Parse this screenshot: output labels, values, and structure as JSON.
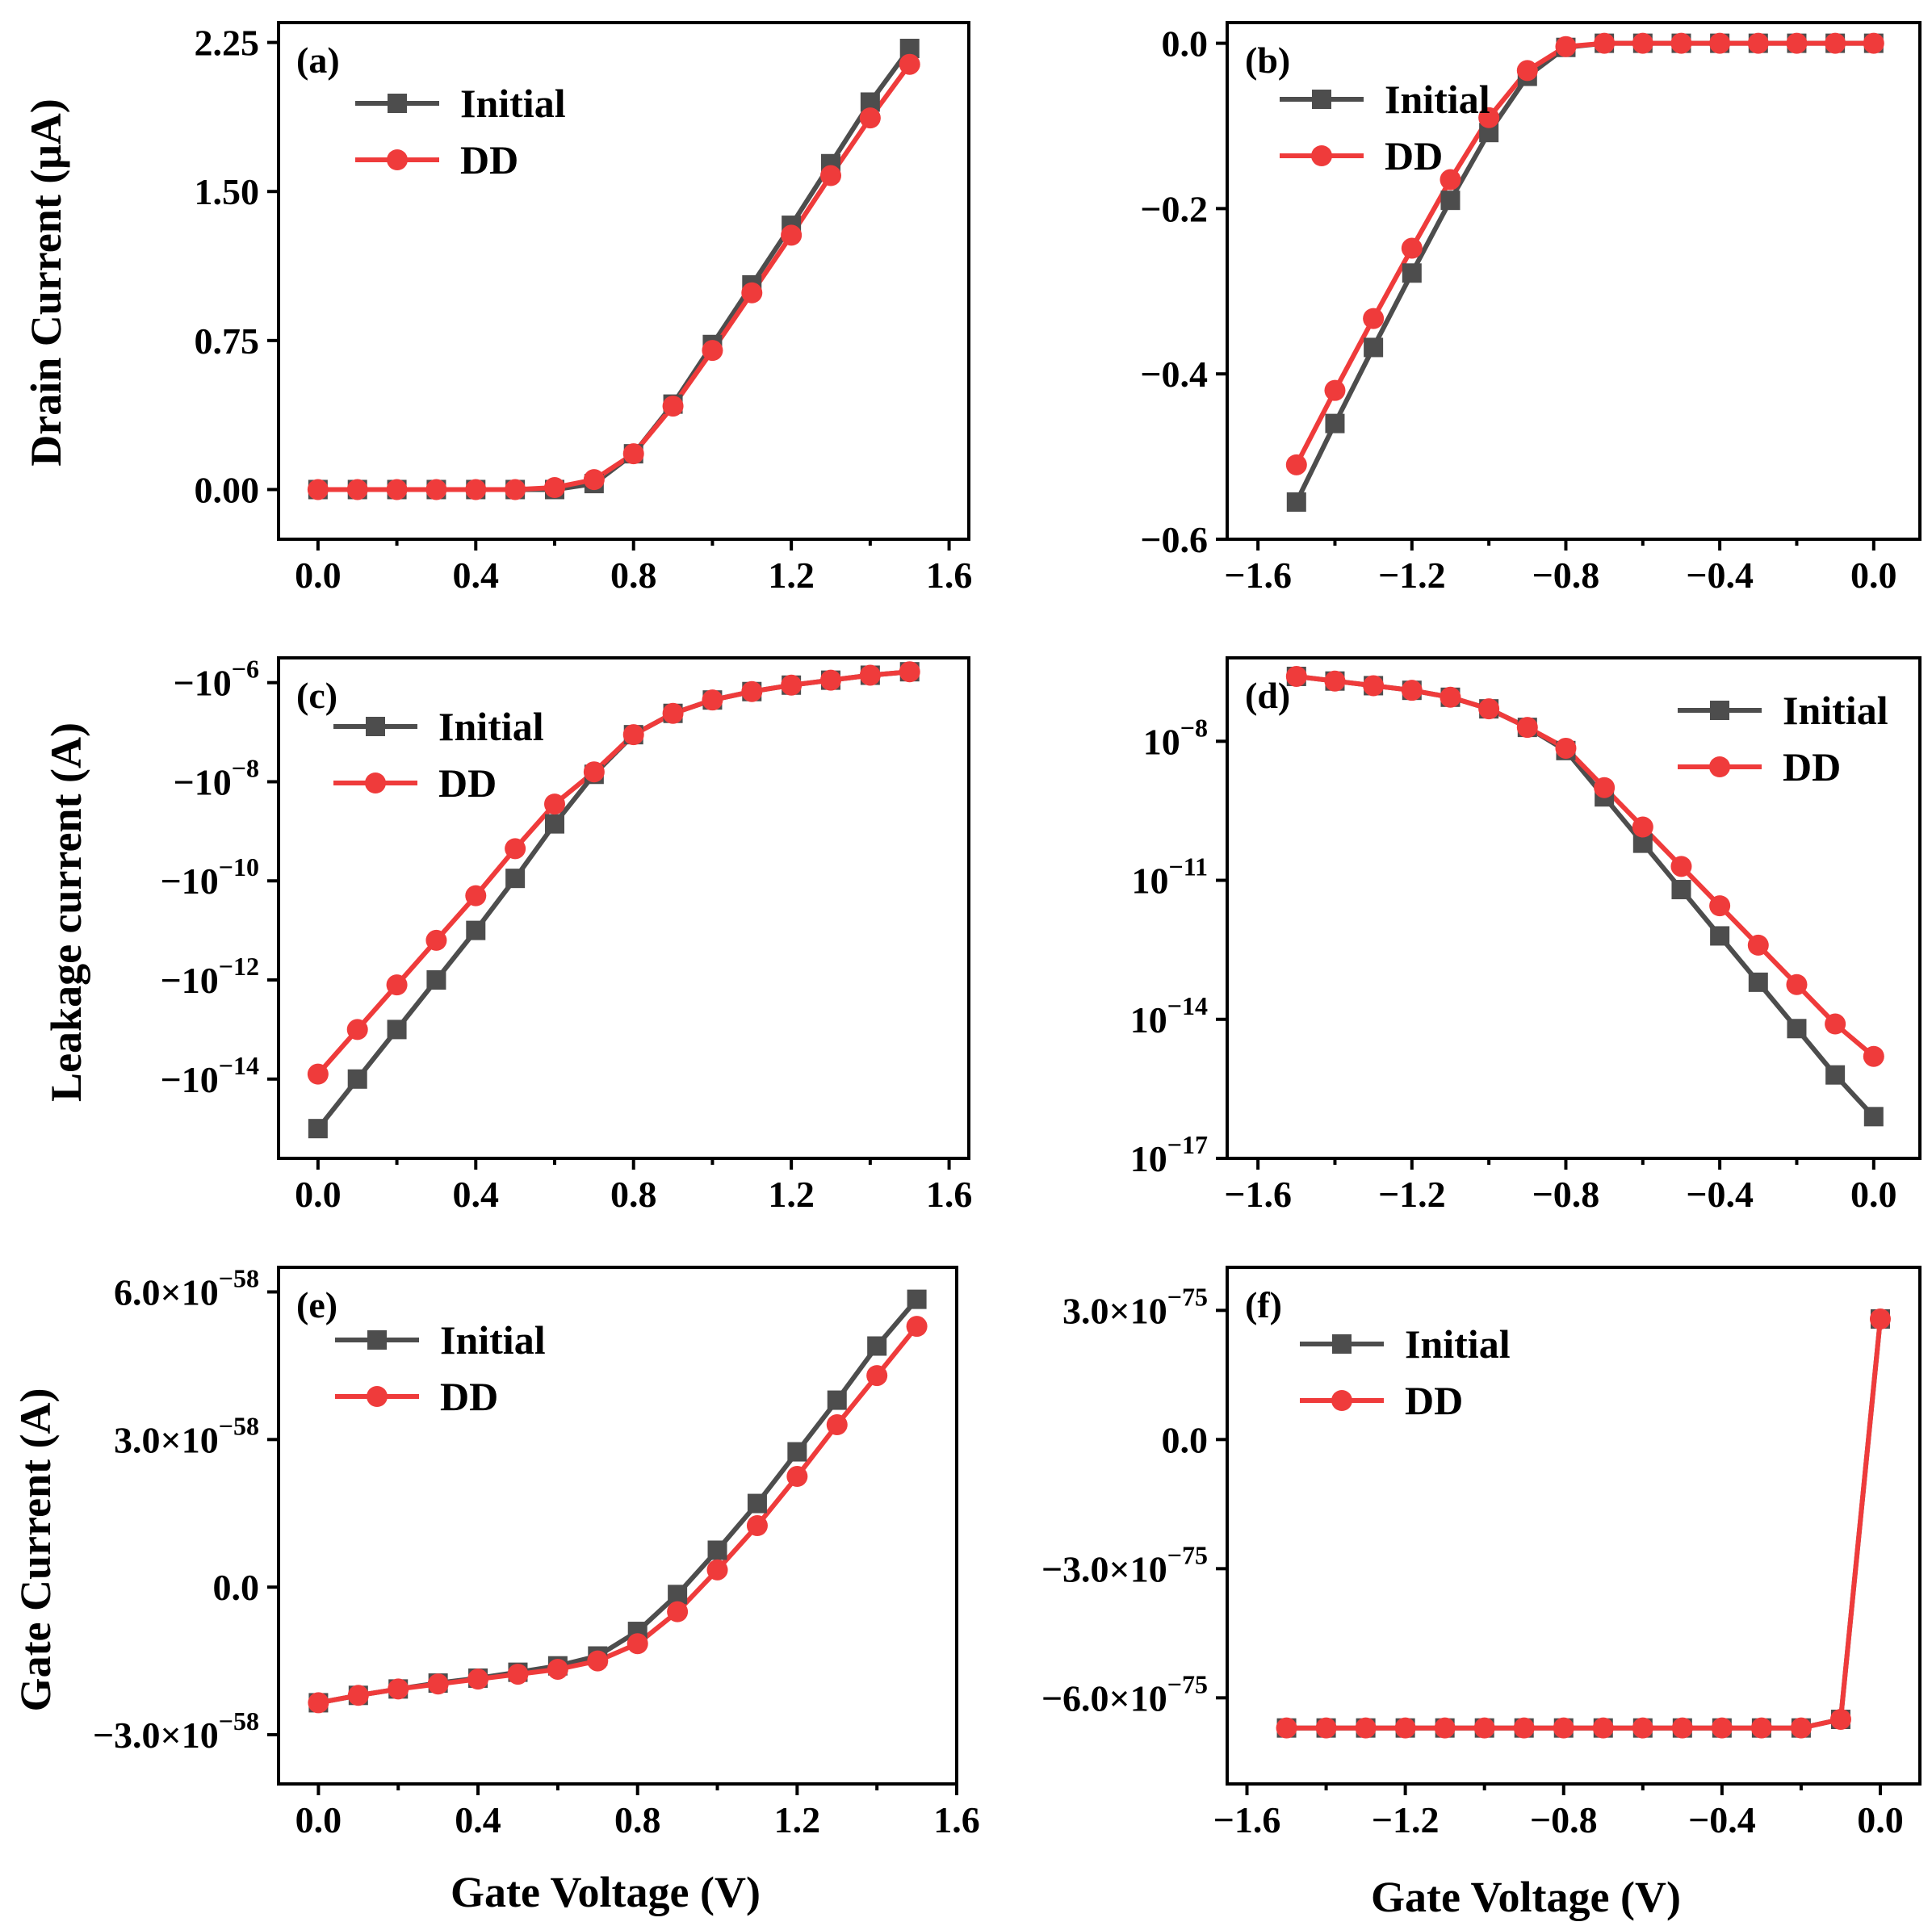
{
  "colors": {
    "initial": "#4d4d4d",
    "dd": "#ef3b3b",
    "axis": "#000000"
  },
  "labels": {
    "ylabel_row1": "Drain Current (μA)",
    "ylabel_row2": "Leakage current (A)",
    "ylabel_row3": "Gate Current (A)",
    "xlabel_left": "Gate Voltage (V)",
    "xlabel_right": "Gate Voltage (V)"
  },
  "chart_data": [
    {
      "id": "a",
      "panel_label": "(a)",
      "type": "line",
      "scale": "linear",
      "xlim": [
        -0.1,
        1.65
      ],
      "ylim": [
        -0.25,
        2.35
      ],
      "xticks": [
        0.0,
        0.4,
        0.8,
        1.2,
        1.6
      ],
      "xtick_labels": [
        "0.0",
        "0.4",
        "0.8",
        "1.2",
        "1.6"
      ],
      "yticks": [
        0.0,
        0.75,
        1.5,
        2.25
      ],
      "ytick_labels": [
        "0.00",
        "0.75",
        "1.50",
        "2.25"
      ],
      "legend_position": "top-left",
      "series": [
        {
          "name": "Initial",
          "marker": "square",
          "x": [
            0.0,
            0.1,
            0.2,
            0.3,
            0.4,
            0.5,
            0.6,
            0.7,
            0.8,
            0.9,
            1.0,
            1.1,
            1.2,
            1.3,
            1.4,
            1.5
          ],
          "y": [
            0.0,
            0.0,
            0.0,
            0.0,
            0.0,
            0.0,
            0.0,
            0.03,
            0.18,
            0.43,
            0.73,
            1.03,
            1.33,
            1.64,
            1.95,
            2.22
          ]
        },
        {
          "name": "DD",
          "marker": "circle",
          "x": [
            0.0,
            0.1,
            0.2,
            0.3,
            0.4,
            0.5,
            0.6,
            0.7,
            0.8,
            0.9,
            1.0,
            1.1,
            1.2,
            1.3,
            1.4,
            1.5
          ],
          "y": [
            0.0,
            0.0,
            0.0,
            0.0,
            0.0,
            0.0,
            0.01,
            0.05,
            0.18,
            0.42,
            0.7,
            0.99,
            1.28,
            1.58,
            1.87,
            2.14
          ]
        }
      ]
    },
    {
      "id": "b",
      "panel_label": "(b)",
      "type": "line",
      "scale": "linear",
      "xlim": [
        -1.68,
        0.12
      ],
      "ylim": [
        -0.6,
        0.025
      ],
      "xticks": [
        -1.6,
        -1.2,
        -0.8,
        -0.4,
        0.0
      ],
      "xtick_labels": [
        "−1.6",
        "−1.2",
        "−0.8",
        "−0.4",
        "0.0"
      ],
      "yticks": [
        0.0,
        -0.2,
        -0.4,
        -0.6
      ],
      "ytick_labels": [
        "0.0",
        "−0.2",
        "−0.4",
        "−0.6"
      ],
      "legend_position": "top-left",
      "series": [
        {
          "name": "Initial",
          "marker": "square",
          "x": [
            -1.5,
            -1.4,
            -1.3,
            -1.2,
            -1.1,
            -1.0,
            -0.9,
            -0.8,
            -0.7,
            -0.6,
            -0.5,
            -0.4,
            -0.3,
            -0.2,
            -0.1,
            0.0
          ],
          "y": [
            -0.555,
            -0.46,
            -0.368,
            -0.278,
            -0.19,
            -0.108,
            -0.04,
            -0.005,
            0.0,
            0.0,
            0.0,
            0.0,
            0.0,
            0.0,
            0.0,
            0.0
          ]
        },
        {
          "name": "DD",
          "marker": "circle",
          "x": [
            -1.5,
            -1.4,
            -1.3,
            -1.2,
            -1.1,
            -1.0,
            -0.9,
            -0.8,
            -0.7,
            -0.6,
            -0.5,
            -0.4,
            -0.3,
            -0.2,
            -0.1,
            0.0
          ],
          "y": [
            -0.51,
            -0.42,
            -0.333,
            -0.248,
            -0.165,
            -0.09,
            -0.033,
            -0.004,
            0.0,
            0.0,
            0.0,
            0.0,
            0.0,
            0.0,
            0.0,
            0.0
          ]
        }
      ]
    },
    {
      "id": "c",
      "panel_label": "(c)",
      "type": "line",
      "scale": "log-magnitude (negative values, shown as exponent of |I|)",
      "xlim": [
        -0.1,
        1.65
      ],
      "ylim": [
        -15.6,
        -5.5
      ],
      "xticks": [
        0.0,
        0.4,
        0.8,
        1.2,
        1.6
      ],
      "xtick_labels": [
        "0.0",
        "0.4",
        "0.8",
        "1.2",
        "1.6"
      ],
      "yticks": [
        -6,
        -8,
        -10,
        -12,
        -14
      ],
      "ytick_labels": [
        {
          "base": "−10",
          "exp": "−6"
        },
        {
          "base": "−10",
          "exp": "−8"
        },
        {
          "base": "−10",
          "exp": "−10"
        },
        {
          "base": "−10",
          "exp": "−12"
        },
        {
          "base": "−10",
          "exp": "−14"
        }
      ],
      "legend_position": "top-left",
      "series": [
        {
          "name": "Initial",
          "marker": "square",
          "x": [
            0.0,
            0.1,
            0.2,
            0.3,
            0.4,
            0.5,
            0.6,
            0.7,
            0.8,
            0.9,
            1.0,
            1.1,
            1.2,
            1.3,
            1.4,
            1.5
          ],
          "y": [
            -15.0,
            -14.0,
            -13.0,
            -12.0,
            -11.0,
            -9.95,
            -8.85,
            -7.85,
            -7.05,
            -6.62,
            -6.35,
            -6.18,
            -6.05,
            -5.95,
            -5.85,
            -5.78
          ]
        },
        {
          "name": "DD",
          "marker": "circle",
          "x": [
            0.0,
            0.1,
            0.2,
            0.3,
            0.4,
            0.5,
            0.6,
            0.7,
            0.8,
            0.9,
            1.0,
            1.1,
            1.2,
            1.3,
            1.4,
            1.5
          ],
          "y": [
            -13.9,
            -13.0,
            -12.1,
            -11.2,
            -10.3,
            -9.35,
            -8.45,
            -7.8,
            -7.05,
            -6.62,
            -6.35,
            -6.18,
            -6.05,
            -5.95,
            -5.85,
            -5.78
          ]
        }
      ]
    },
    {
      "id": "d",
      "panel_label": "(d)",
      "type": "line",
      "scale": "log",
      "xlim": [
        -1.68,
        0.12
      ],
      "ylim": [
        -17.0,
        -6.2
      ],
      "xticks": [
        -1.6,
        -1.2,
        -0.8,
        -0.4,
        0.0
      ],
      "xtick_labels": [
        "−1.6",
        "−1.2",
        "−0.8",
        "−0.4",
        "0.0"
      ],
      "yticks": [
        -8,
        -11,
        -14,
        -17
      ],
      "ytick_labels": [
        {
          "base": "10",
          "exp": "−8"
        },
        {
          "base": "10",
          "exp": "−11"
        },
        {
          "base": "10",
          "exp": "−14"
        },
        {
          "base": "10",
          "exp": "−17"
        }
      ],
      "legend_position": "top-right",
      "series": [
        {
          "name": "Initial",
          "marker": "square",
          "x": [
            -1.5,
            -1.4,
            -1.3,
            -1.2,
            -1.1,
            -1.0,
            -0.9,
            -0.8,
            -0.7,
            -0.6,
            -0.5,
            -0.4,
            -0.3,
            -0.2,
            -0.1,
            0.0
          ],
          "y": [
            -6.6,
            -6.7,
            -6.8,
            -6.9,
            -7.05,
            -7.3,
            -7.7,
            -8.2,
            -9.2,
            -10.2,
            -11.2,
            -12.2,
            -13.2,
            -14.2,
            -15.2,
            -16.1
          ]
        },
        {
          "name": "DD",
          "marker": "circle",
          "x": [
            -1.5,
            -1.4,
            -1.3,
            -1.2,
            -1.1,
            -1.0,
            -0.9,
            -0.8,
            -0.7,
            -0.6,
            -0.5,
            -0.4,
            -0.3,
            -0.2,
            -0.1,
            0.0
          ],
          "y": [
            -6.6,
            -6.7,
            -6.8,
            -6.9,
            -7.05,
            -7.3,
            -7.7,
            -8.15,
            -9.0,
            -9.85,
            -10.7,
            -11.55,
            -12.4,
            -13.25,
            -14.1,
            -14.8
          ]
        }
      ]
    },
    {
      "id": "e",
      "panel_label": "(e)",
      "type": "line",
      "scale": "linear (units of 1e-58 A)",
      "xlim": [
        -0.1,
        1.6
      ],
      "ylim": [
        -4.0,
        6.5
      ],
      "xticks": [
        0.0,
        0.4,
        0.8,
        1.2,
        1.6
      ],
      "xtick_labels": [
        "0.0",
        "0.4",
        "0.8",
        "1.2",
        "1.6"
      ],
      "yticks": [
        6.0,
        3.0,
        0.0,
        -3.0
      ],
      "ytick_labels": [
        {
          "base": "6.0×10",
          "exp": "−58"
        },
        {
          "base": "3.0×10",
          "exp": "−58"
        },
        {
          "base": "0.0",
          "exp": ""
        },
        {
          "base": "−3.0×10",
          "exp": "−58"
        }
      ],
      "legend_position": "top-left",
      "series": [
        {
          "name": "Initial",
          "marker": "square",
          "x": [
            0.0,
            0.1,
            0.2,
            0.3,
            0.4,
            0.5,
            0.6,
            0.7,
            0.8,
            0.9,
            1.0,
            1.1,
            1.2,
            1.3,
            1.4,
            1.5
          ],
          "y": [
            -2.35,
            -2.2,
            -2.07,
            -1.95,
            -1.85,
            -1.73,
            -1.6,
            -1.4,
            -0.9,
            -0.15,
            0.75,
            1.7,
            2.75,
            3.8,
            4.9,
            5.85
          ]
        },
        {
          "name": "DD",
          "marker": "circle",
          "x": [
            0.0,
            0.1,
            0.2,
            0.3,
            0.4,
            0.5,
            0.6,
            0.7,
            0.8,
            0.9,
            1.0,
            1.1,
            1.2,
            1.3,
            1.4,
            1.5
          ],
          "y": [
            -2.35,
            -2.2,
            -2.07,
            -1.97,
            -1.87,
            -1.77,
            -1.67,
            -1.5,
            -1.15,
            -0.5,
            0.35,
            1.25,
            2.25,
            3.3,
            4.3,
            5.3
          ]
        }
      ]
    },
    {
      "id": "f",
      "panel_label": "(f)",
      "type": "line",
      "scale": "linear (units of 1e-75 A)",
      "xlim": [
        -1.65,
        0.1
      ],
      "ylim": [
        -8.0,
        4.0
      ],
      "xticks": [
        -1.6,
        -1.2,
        -0.8,
        -0.4,
        0.0
      ],
      "xtick_labels": [
        "−1.6",
        "−1.2",
        "−0.8",
        "−0.4",
        "0.0"
      ],
      "yticks": [
        3.0,
        0.0,
        -3.0,
        -6.0
      ],
      "ytick_labels": [
        {
          "base": "3.0×10",
          "exp": "−75"
        },
        {
          "base": "0.0",
          "exp": ""
        },
        {
          "base": "−3.0×10",
          "exp": "−75"
        },
        {
          "base": "−6.0×10",
          "exp": "−75"
        }
      ],
      "legend_position": "top-left",
      "series": [
        {
          "name": "Initial",
          "marker": "square",
          "x": [
            -1.5,
            -1.4,
            -1.3,
            -1.2,
            -1.1,
            -1.0,
            -0.9,
            -0.8,
            -0.7,
            -0.6,
            -0.5,
            -0.4,
            -0.3,
            -0.2,
            -0.1,
            0.0
          ],
          "y": [
            -6.7,
            -6.7,
            -6.7,
            -6.7,
            -6.7,
            -6.7,
            -6.7,
            -6.7,
            -6.7,
            -6.7,
            -6.7,
            -6.7,
            -6.7,
            -6.7,
            -6.5,
            2.8
          ]
        },
        {
          "name": "DD",
          "marker": "circle",
          "x": [
            -1.5,
            -1.4,
            -1.3,
            -1.2,
            -1.1,
            -1.0,
            -0.9,
            -0.8,
            -0.7,
            -0.6,
            -0.5,
            -0.4,
            -0.3,
            -0.2,
            -0.1,
            0.0
          ],
          "y": [
            -6.7,
            -6.7,
            -6.7,
            -6.7,
            -6.7,
            -6.7,
            -6.7,
            -6.7,
            -6.7,
            -6.7,
            -6.7,
            -6.7,
            -6.7,
            -6.7,
            -6.5,
            2.8
          ]
        }
      ]
    }
  ]
}
